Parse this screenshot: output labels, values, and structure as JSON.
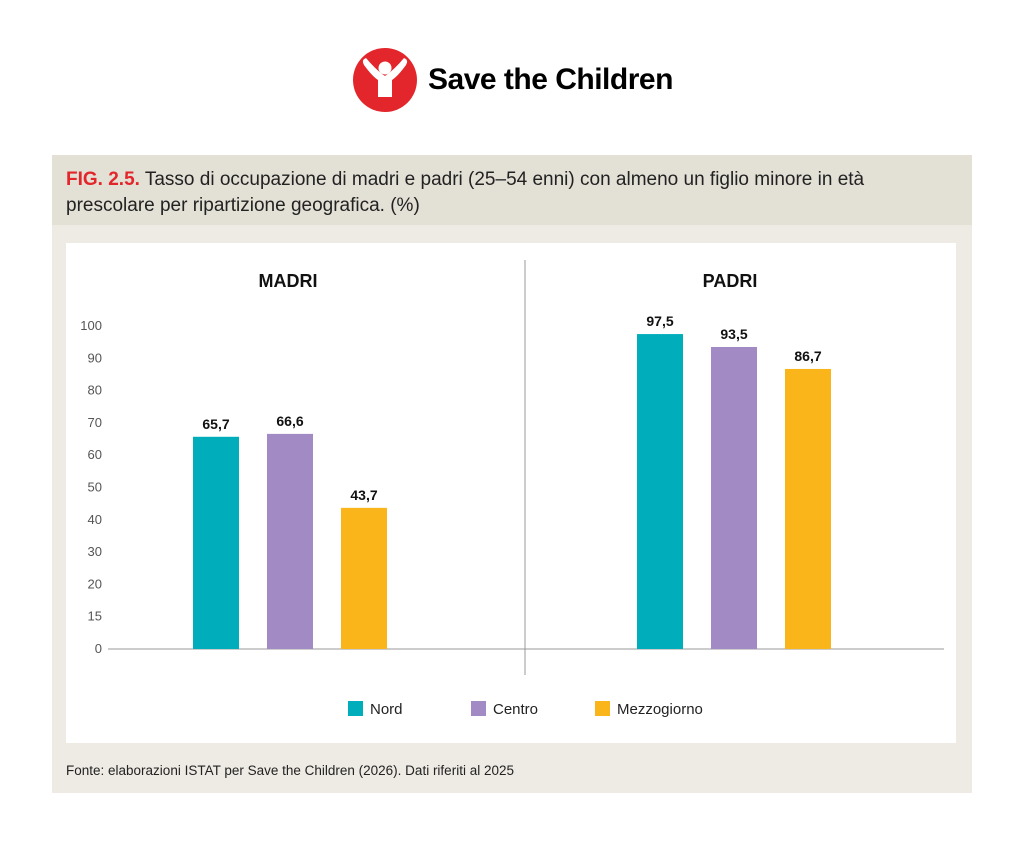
{
  "brand": {
    "name": "Save the Children",
    "color": "#e3262b"
  },
  "figure": {
    "number": "FIG. 2.5.",
    "title": "Tasso di occupazione di madri e padri (25–54 enni) con almeno un figlio minore in età prescolare per ripartizione geografica. (%)",
    "source": "Fonte: elaborazioni ISTAT per Save the Children (2026). Dati riferiti al 2025"
  },
  "chart_data": {
    "type": "bar",
    "panels": [
      {
        "title": "MADRI",
        "categories": [
          "Nord",
          "Centro",
          "Mezzogiorno"
        ],
        "values": [
          65.7,
          66.6,
          43.7
        ],
        "labels": [
          "65,7",
          "66,6",
          "43,7"
        ]
      },
      {
        "title": "PADRI",
        "categories": [
          "Nord",
          "Centro",
          "Mezzogiorno"
        ],
        "values": [
          97.5,
          93.5,
          86.7
        ],
        "labels": [
          "97,5",
          "93,5",
          "86,7"
        ]
      }
    ],
    "series_colors": [
      "#00adbb",
      "#a28bc4",
      "#fab51b"
    ],
    "legend": [
      "Nord",
      "Centro",
      "Mezzogiorno"
    ],
    "legend_position": "bottom",
    "yticks": [
      "0",
      "15",
      "20",
      "30",
      "40",
      "50",
      "60",
      "70",
      "80",
      "90",
      "100"
    ],
    "ylim": [
      0,
      100
    ],
    "grid": false
  }
}
